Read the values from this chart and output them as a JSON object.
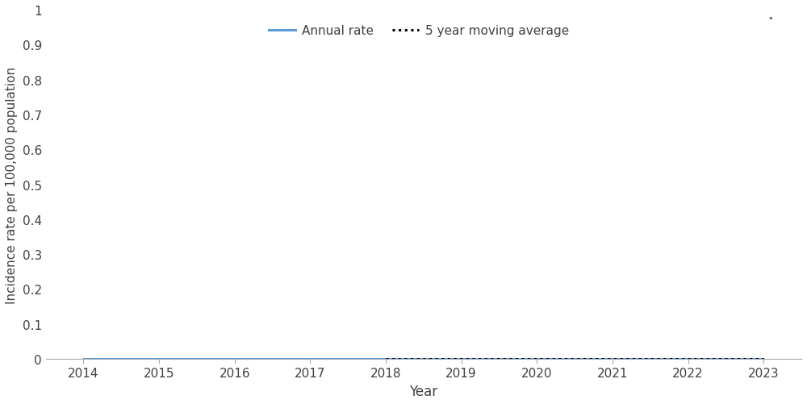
{
  "years": [
    2014,
    2015,
    2016,
    2017,
    2018,
    2019,
    2020,
    2021,
    2022,
    2023
  ],
  "annual_rate": [
    0.0,
    0.0,
    0.0,
    0.0,
    0.0,
    0.0,
    0.0,
    0.0,
    0.0,
    0.0
  ],
  "moving_avg": [
    null,
    null,
    null,
    null,
    0.0,
    0.0,
    0.0,
    0.0,
    0.0,
    0.0
  ],
  "annual_rate_color": "#5B9BD5",
  "moving_avg_color": "#000000",
  "xlabel": "Year",
  "ylabel": "Incidence rate per 100,000 population",
  "legend_annual": "Annual rate",
  "legend_moving": "5 year moving average",
  "ylim": [
    0,
    1
  ],
  "yticks": [
    0,
    0.1,
    0.2,
    0.3,
    0.4,
    0.5,
    0.6,
    0.7,
    0.8,
    0.9,
    1
  ],
  "xlim": [
    2013.5,
    2023.5
  ],
  "xticks": [
    2014,
    2015,
    2016,
    2017,
    2018,
    2019,
    2020,
    2021,
    2022,
    2023
  ],
  "background_color": "#ffffff",
  "axis_fontsize": 12,
  "tick_fontsize": 11,
  "legend_fontsize": 11,
  "line_width": 2.2,
  "ylabel_fontsize": 11
}
